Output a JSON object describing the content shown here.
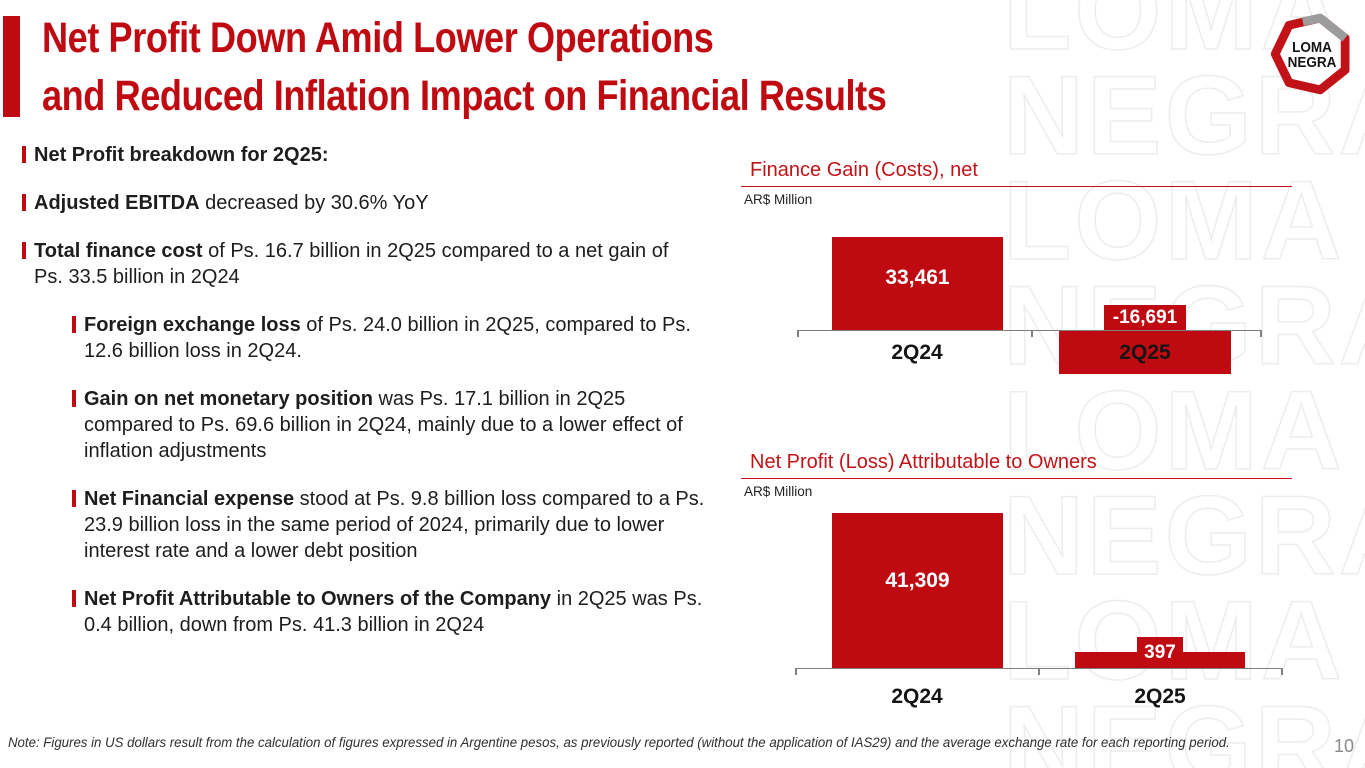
{
  "colors": {
    "brand_red": "#c00a11",
    "chart_title_red": "#c11318",
    "axis_gray": "#7f7f7f",
    "watermark_gray": "#ededed",
    "text_dark": "#1d1d1d"
  },
  "header": {
    "title_line1": "Net Profit Down Amid Lower Operations",
    "title_line2": "and Reduced Inflation Impact on Financial Results"
  },
  "logo": {
    "line1": "LOMA",
    "line2": "NEGRA"
  },
  "bullets": [
    {
      "level": 1,
      "bold": "Net Profit breakdown for 2Q25:",
      "rest": ""
    },
    {
      "level": 1,
      "bold": "Adjusted EBITDA",
      "rest": " decreased by 30.6% YoY"
    },
    {
      "level": 1,
      "bold": "Total finance cost",
      "rest": " of Ps. 16.7 billion in 2Q25 compared to a net gain of Ps. 33.5 billion in 2Q24"
    },
    {
      "level": 2,
      "bold": "Foreign exchange loss",
      "rest": " of Ps. 24.0 billion in 2Q25, compared to Ps. 12.6 billion loss in 2Q24."
    },
    {
      "level": 2,
      "bold": "Gain on net monetary position",
      "rest": " was Ps. 17.1 billion in 2Q25 compared to Ps. 69.6 billion in 2Q24, mainly due to a lower effect of inflation adjustments"
    },
    {
      "level": 2,
      "bold": "Net Financial expense",
      "rest": " stood at Ps. 9.8 billion loss compared to a Ps. 23.9 billion loss in the same period of 2024, primarily due to lower interest rate and a lower debt position"
    },
    {
      "level": 2,
      "bold": "Net Profit Attributable to Owners of the Company",
      "rest": " in 2Q25 was Ps. 0.4 billion, down from Ps. 41.3 billion in 2Q24"
    }
  ],
  "chart_data": [
    {
      "type": "bar",
      "title": "Finance Gain (Costs), net",
      "unit": "AR$ Million",
      "categories": [
        "2Q24",
        "2Q25"
      ],
      "values": [
        33461,
        -16691
      ],
      "labels": [
        "33,461",
        "-16,691"
      ],
      "bar_color": "#c00a11",
      "ylim": [
        -20000,
        36000
      ],
      "grid": false,
      "legend": "none"
    },
    {
      "type": "bar",
      "title": "Net Profit (Loss) Attributable to Owners",
      "unit": "AR$ Million",
      "categories": [
        "2Q24",
        "2Q25"
      ],
      "values": [
        41309,
        397
      ],
      "labels": [
        "41,309",
        "397"
      ],
      "bar_color": "#c00a11",
      "ylim": [
        0,
        44000
      ],
      "grid": false,
      "legend": "none"
    }
  ],
  "watermark": {
    "words": [
      "LOMA",
      "NEGRA",
      "LOMA",
      "NEGRA",
      "LOMA",
      "NEGRA",
      "LOMA",
      "NEGRA"
    ]
  },
  "footer": {
    "note": "Note: Figures in US dollars result from the calculation of figures expressed in Argentine pesos, as previously reported (without the application of IAS29) and the average exchange rate for each reporting period.",
    "page_number": "10"
  }
}
